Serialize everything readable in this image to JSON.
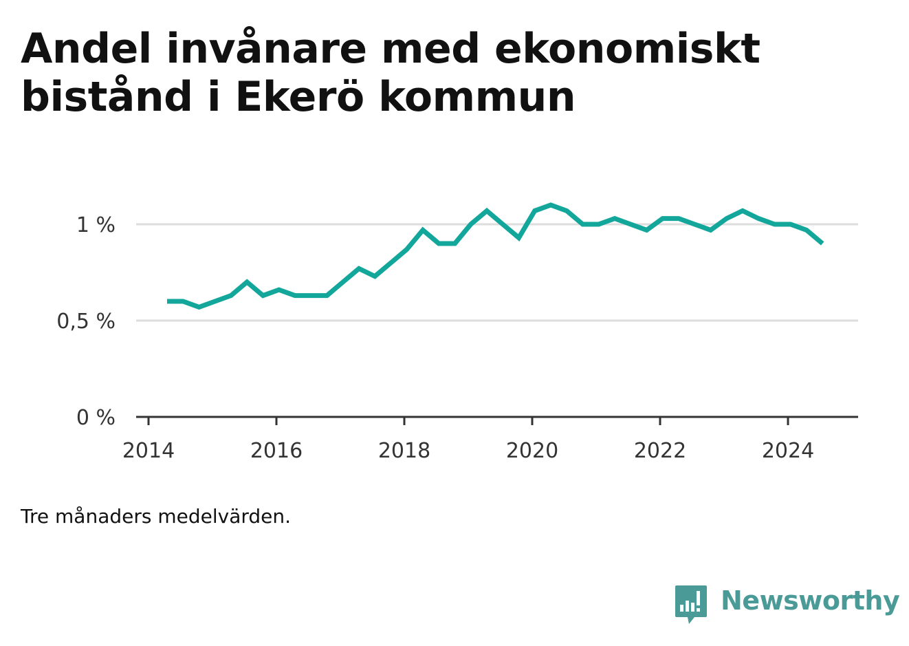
{
  "title": "Andel invånare med ekonomiskt bistånd i Ekerö kommun",
  "note": "Tre månaders medelvärden.",
  "logo": {
    "text": "Newsworthy",
    "icon": "bar-chart-speech-bubble-icon",
    "color": "#4a9a97"
  },
  "chart_data": {
    "type": "line",
    "title": "Andel invånare med ekonomiskt bistånd i Ekerö kommun",
    "xlabel": "",
    "ylabel": "",
    "xlim": [
      2014.0,
      2025.0
    ],
    "ylim": [
      0,
      1.1
    ],
    "grid": true,
    "legend": "none",
    "line_color": "#13a69b",
    "x_ticks": [
      {
        "value": 2014,
        "label": "2014"
      },
      {
        "value": 2016,
        "label": "2016"
      },
      {
        "value": 2018,
        "label": "2018"
      },
      {
        "value": 2020,
        "label": "2020"
      },
      {
        "value": 2022,
        "label": "2022"
      },
      {
        "value": 2024,
        "label": "2024"
      }
    ],
    "y_ticks": [
      {
        "value": 0,
        "label": "0 %"
      },
      {
        "value": 0.5,
        "label": "0,5 %"
      },
      {
        "value": 1.0,
        "label": "1 %"
      }
    ],
    "series": [
      {
        "x": [
          2014.29,
          2014.54,
          2014.79,
          2015.04,
          2015.29,
          2015.54,
          2015.79,
          2016.04,
          2016.29,
          2016.54,
          2016.79,
          2017.04,
          2017.29,
          2017.54,
          2017.79,
          2018.04,
          2018.29,
          2018.54,
          2018.79,
          2019.04,
          2019.29,
          2019.54,
          2019.79,
          2020.04,
          2020.29,
          2020.54,
          2020.79,
          2021.04,
          2021.29,
          2021.54,
          2021.79,
          2022.04,
          2022.29,
          2022.54,
          2022.79,
          2023.04,
          2023.29,
          2023.54,
          2023.79,
          2024.04,
          2024.29,
          2024.54
        ],
        "values": [
          0.6,
          0.6,
          0.57,
          0.6,
          0.63,
          0.7,
          0.63,
          0.66,
          0.63,
          0.63,
          0.63,
          0.7,
          0.77,
          0.73,
          0.8,
          0.87,
          0.97,
          0.9,
          0.9,
          1.0,
          1.07,
          1.0,
          0.93,
          1.07,
          1.1,
          1.07,
          1.0,
          1.0,
          1.03,
          1.0,
          0.97,
          1.03,
          1.03,
          1.0,
          0.97,
          1.03,
          1.07,
          1.03,
          1.0,
          1.0,
          0.97,
          0.9
        ]
      }
    ]
  }
}
